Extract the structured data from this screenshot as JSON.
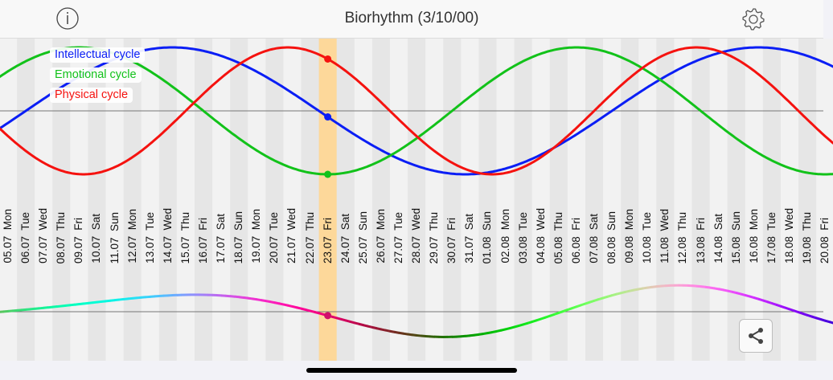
{
  "header": {
    "title": "Biorhythm (3/10/00)",
    "info_icon": "info-circle-icon",
    "settings_icon": "gear-icon"
  },
  "legend": [
    {
      "label": "Intellectual cycle",
      "color": "#0a1ef5"
    },
    {
      "label": "Emotional cycle",
      "color": "#12c21a"
    },
    {
      "label": "Physical cycle",
      "color": "#f5120f"
    }
  ],
  "share_icon": "share-icon",
  "chart_data": {
    "type": "line",
    "ylim": [
      -1,
      1
    ],
    "selected_date": "23.07 Fri",
    "highlight_color": "#fdd89a",
    "series": [
      {
        "name": "Intellectual cycle",
        "period_days": 33,
        "value_at_selected": -0.09,
        "color": "#0a1ef5"
      },
      {
        "name": "Emotional cycle",
        "period_days": 28,
        "value_at_selected": -1.0,
        "color": "#12c21a"
      },
      {
        "name": "Physical cycle",
        "period_days": 23,
        "value_at_selected": 0.82,
        "color": "#f5120f"
      }
    ],
    "combined_curve": {
      "value_at_selected": -0.09,
      "color_rule": "rgb from physical/emotional/intellectual"
    },
    "categories": [
      {
        "date": "05.07",
        "day": "Mon"
      },
      {
        "date": "06.07",
        "day": "Tue"
      },
      {
        "date": "07.07",
        "day": "Wed"
      },
      {
        "date": "08.07",
        "day": "Thu"
      },
      {
        "date": "09.07",
        "day": "Fri"
      },
      {
        "date": "10.07",
        "day": "Sat"
      },
      {
        "date": "11.07",
        "day": "Sun"
      },
      {
        "date": "12.07",
        "day": "Mon"
      },
      {
        "date": "13.07",
        "day": "Tue"
      },
      {
        "date": "14.07",
        "day": "Wed"
      },
      {
        "date": "15.07",
        "day": "Thu"
      },
      {
        "date": "16.07",
        "day": "Fri"
      },
      {
        "date": "17.07",
        "day": "Sat"
      },
      {
        "date": "18.07",
        "day": "Sun"
      },
      {
        "date": "19.07",
        "day": "Mon"
      },
      {
        "date": "20.07",
        "day": "Tue"
      },
      {
        "date": "21.07",
        "day": "Wed"
      },
      {
        "date": "22.07",
        "day": "Thu"
      },
      {
        "date": "23.07",
        "day": "Fri"
      },
      {
        "date": "24.07",
        "day": "Sat"
      },
      {
        "date": "25.07",
        "day": "Sun"
      },
      {
        "date": "26.07",
        "day": "Mon"
      },
      {
        "date": "27.07",
        "day": "Tue"
      },
      {
        "date": "28.07",
        "day": "Wed"
      },
      {
        "date": "29.07",
        "day": "Thu"
      },
      {
        "date": "30.07",
        "day": "Fri"
      },
      {
        "date": "31.07",
        "day": "Sat"
      },
      {
        "date": "01.08",
        "day": "Sun"
      },
      {
        "date": "02.08",
        "day": "Mon"
      },
      {
        "date": "03.08",
        "day": "Tue"
      },
      {
        "date": "04.08",
        "day": "Wed"
      },
      {
        "date": "05.08",
        "day": "Thu"
      },
      {
        "date": "06.08",
        "day": "Fri"
      },
      {
        "date": "07.08",
        "day": "Sat"
      },
      {
        "date": "08.08",
        "day": "Sun"
      },
      {
        "date": "09.08",
        "day": "Mon"
      },
      {
        "date": "10.08",
        "day": "Tue"
      },
      {
        "date": "11.08",
        "day": "Wed"
      },
      {
        "date": "12.08",
        "day": "Thu"
      },
      {
        "date": "13.08",
        "day": "Fri"
      },
      {
        "date": "14.08",
        "day": "Sat"
      },
      {
        "date": "15.08",
        "day": "Sun"
      },
      {
        "date": "16.08",
        "day": "Mon"
      },
      {
        "date": "17.08",
        "day": "Tue"
      },
      {
        "date": "18.08",
        "day": "Wed"
      },
      {
        "date": "19.08",
        "day": "Thu"
      },
      {
        "date": "20.08",
        "day": "Fri"
      }
    ]
  }
}
